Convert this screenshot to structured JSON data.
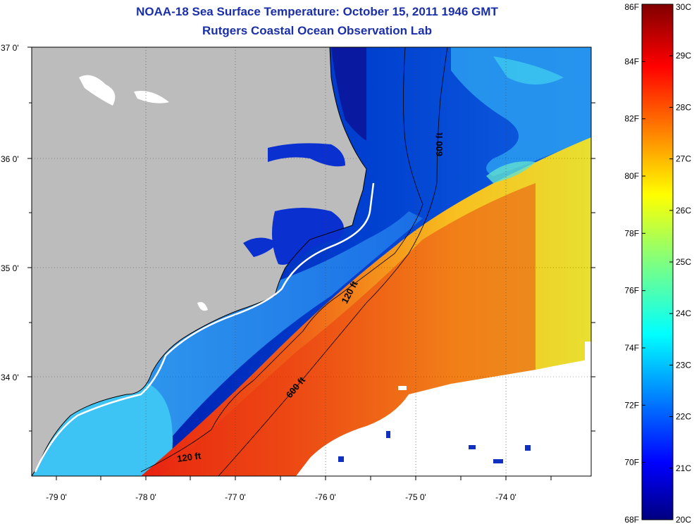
{
  "title": "NOAA-18 Sea Surface Temperature:  October 15, 2011 1946 GMT",
  "subtitle": "Rutgers Coastal Ocean Observation Lab",
  "map": {
    "lat_labels": [
      "37 0'",
      "36 0'",
      "35 0'",
      "34 0'"
    ],
    "lon_labels": [
      "-79 0'",
      "-78 0'",
      "-77 0'",
      "-76 0'",
      "-75 0'",
      "-74 0'"
    ],
    "contours": [
      {
        "label": "600 ft"
      },
      {
        "label": "120 ft"
      },
      {
        "label": "600 ft"
      },
      {
        "label": "120 ft"
      }
    ]
  },
  "colorbar": {
    "fahrenheit": [
      "86F",
      "84F",
      "82F",
      "80F",
      "78F",
      "76F",
      "74F",
      "72F",
      "70F",
      "68F"
    ],
    "celsius": [
      "30C",
      "29C",
      "28C",
      "27C",
      "26C",
      "25C",
      "24C",
      "23C",
      "22C",
      "21C",
      "20C"
    ]
  },
  "colors": {
    "title": "#1a2fa8",
    "land": "#bcbcbc",
    "cloud": "#ffffff",
    "cold": "#000080",
    "warm": "#800000"
  }
}
